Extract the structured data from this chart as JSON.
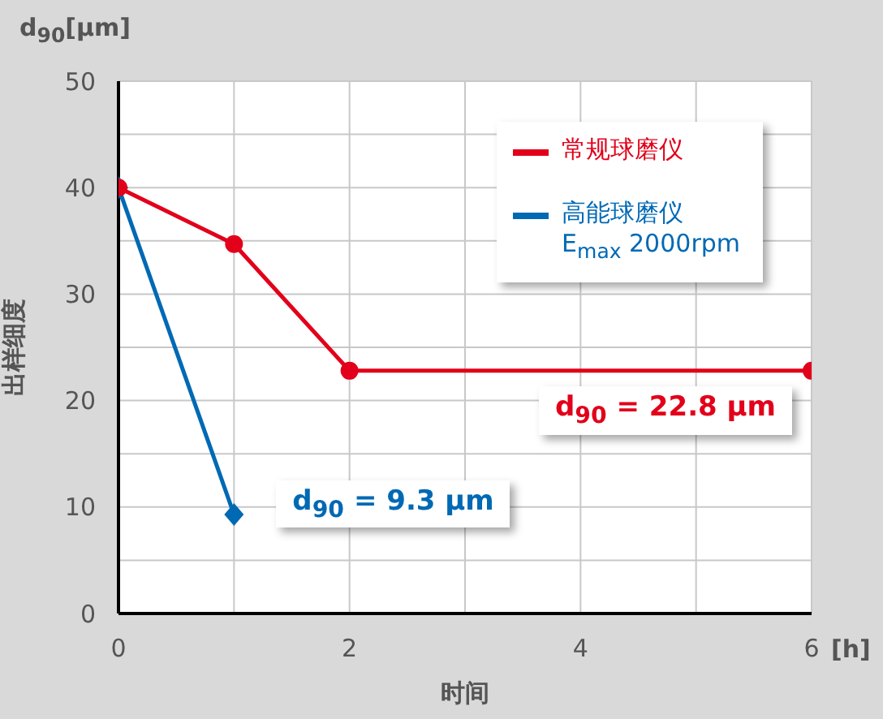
{
  "chart_data": {
    "type": "line",
    "ylabel": "出样细度",
    "xlabel": "时间",
    "xlim": [
      0,
      6
    ],
    "xticks": [
      0,
      {
        "value": 1,
        "label": null
      },
      2,
      {
        "value": 3,
        "label": null
      },
      4,
      {
        "value": 5,
        "label": null
      },
      6
    ],
    "ylim": [
      0,
      50
    ],
    "yticks": [
      0,
      {
        "value": 5,
        "label": null
      },
      10,
      {
        "value": 15,
        "label": null
      },
      20,
      {
        "value": 25,
        "label": null
      },
      30,
      {
        "value": 35,
        "label": null
      },
      40,
      {
        "value": 45,
        "label": null
      },
      50
    ],
    "grid": true,
    "legend": "top right",
    "series": [
      {
        "name": "常规球磨仪",
        "color": "#e2001a",
        "marker": "circle",
        "x": [
          0,
          1,
          2,
          6
        ],
        "values": [
          40,
          34.7,
          22.8,
          22.8
        ]
      },
      {
        "name": "高能球磨仪\nE$_{max}$ 2000rpm",
        "color": "#0069b4",
        "marker": "diamond",
        "x": [
          0,
          1
        ],
        "values": [
          40,
          9.3
        ]
      }
    ],
    "annotations": [
      "d$_{90}$[μm]",
      "[h]",
      {
        "text": "d$_{90}$ = 22.8 μm",
        "x": 6,
        "y": 22.8
      },
      {
        "text": "d$_{90}$ = 9.3 μm",
        "x": 1,
        "y": 9.3
      }
    ]
  }
}
